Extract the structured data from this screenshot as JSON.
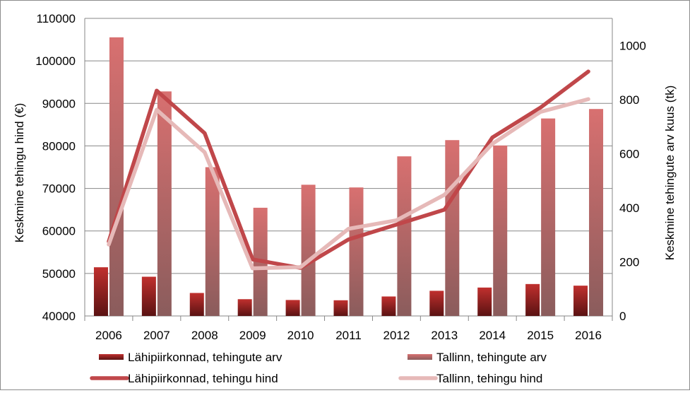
{
  "chart_data": {
    "type": "bar",
    "categories": [
      "2006",
      "2007",
      "2008",
      "2009",
      "2010",
      "2011",
      "2012",
      "2013",
      "2014",
      "2015",
      "2016"
    ],
    "ylabel": "Keskmine tehingu hind (€)",
    "y2label": "Keskmine tehingute arv kuus (tk)",
    "ylim": [
      40000,
      110000
    ],
    "y2lim": [
      0,
      1100
    ],
    "yticks": [
      "40000",
      "50000",
      "60000",
      "70000",
      "80000",
      "90000",
      "100000",
      "110000"
    ],
    "y2ticks": [
      "0",
      "200",
      "400",
      "600",
      "800",
      "1000"
    ],
    "series": [
      {
        "name": "Lähipiirkonnad, tehingute arv",
        "kind": "bar",
        "axis": "right",
        "color": "#b02a2a",
        "values": [
          180,
          145,
          85,
          62,
          59,
          58,
          72,
          93,
          105,
          118,
          112
        ]
      },
      {
        "name": "Tallinn, tehingute arv",
        "kind": "bar",
        "axis": "right",
        "color": "#d46a6a",
        "values": [
          1030,
          830,
          550,
          400,
          485,
          475,
          590,
          650,
          630,
          730,
          765
        ]
      },
      {
        "name": "Lähipiirkonnad, tehingu hind",
        "kind": "line",
        "axis": "left",
        "color": "#c0474a",
        "values": [
          57500,
          93000,
          83000,
          53300,
          51300,
          58000,
          61500,
          65000,
          82000,
          89000,
          97500
        ]
      },
      {
        "name": "Tallinn, tehingu hind",
        "kind": "line",
        "axis": "left",
        "color": "#e6b9b8",
        "values": [
          56800,
          88500,
          78500,
          51200,
          51500,
          60500,
          62500,
          68500,
          80500,
          88000,
          91000
        ]
      }
    ],
    "grid": true,
    "legend": "bottom"
  }
}
